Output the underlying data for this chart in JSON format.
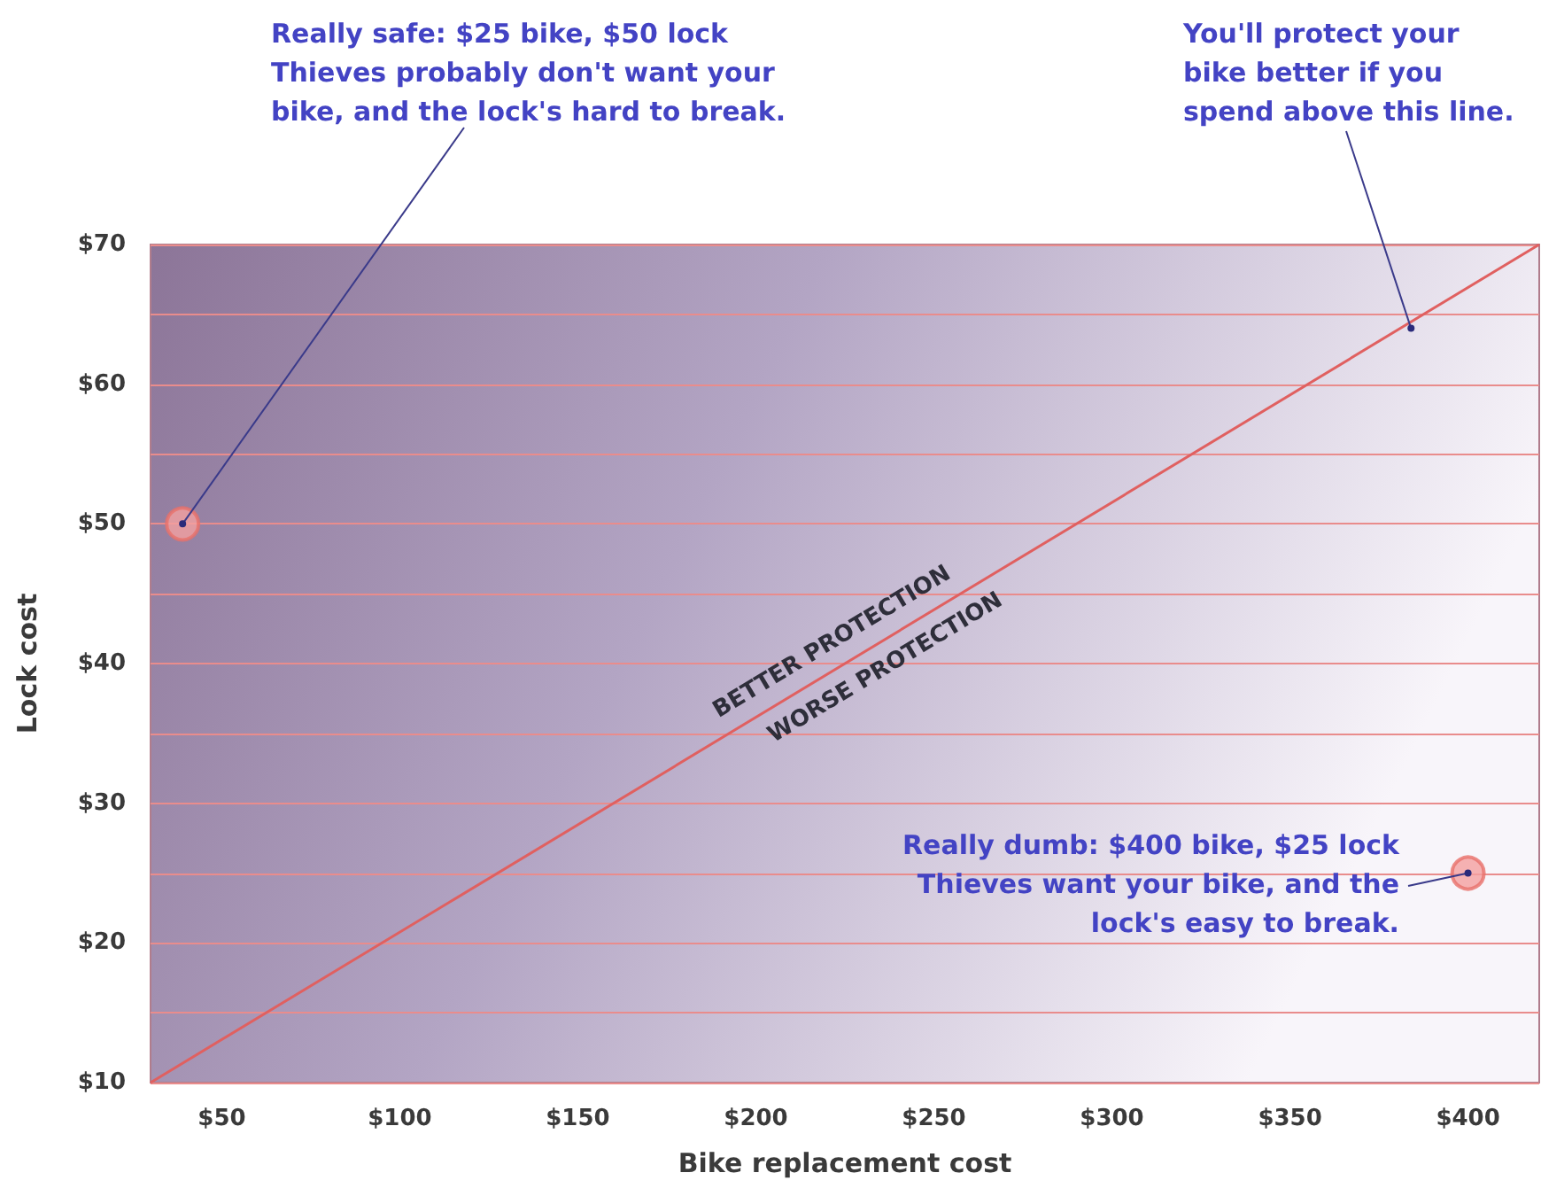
{
  "chart_data": {
    "type": "scatter",
    "xlabel": "Bike replacement cost",
    "ylabel": "Lock cost",
    "xlim": [
      30,
      420
    ],
    "ylim": [
      10,
      70
    ],
    "xticks": [
      {
        "value": 50,
        "label": "$50"
      },
      {
        "value": 100,
        "label": "$100"
      },
      {
        "value": 150,
        "label": "$150"
      },
      {
        "value": 200,
        "label": "$200"
      },
      {
        "value": 250,
        "label": "$250"
      },
      {
        "value": 300,
        "label": "$300"
      },
      {
        "value": 350,
        "label": "$350"
      },
      {
        "value": 400,
        "label": "$400"
      }
    ],
    "yticks": [
      {
        "value": 10,
        "label": "$10"
      },
      {
        "value": 15,
        "label": null
      },
      {
        "value": 20,
        "label": "$20"
      },
      {
        "value": 25,
        "label": null
      },
      {
        "value": 30,
        "label": "$30"
      },
      {
        "value": 35,
        "label": null
      },
      {
        "value": 40,
        "label": "$40"
      },
      {
        "value": 45,
        "label": null
      },
      {
        "value": 50,
        "label": "$50"
      },
      {
        "value": 55,
        "label": null
      },
      {
        "value": 60,
        "label": "$60"
      },
      {
        "value": 65,
        "label": null
      },
      {
        "value": 70,
        "label": "$70"
      }
    ],
    "grid": "y",
    "marker": "circle",
    "series": [
      {
        "type": "line",
        "color": "#e06060",
        "marker": "none",
        "x": [
          30,
          420
        ],
        "values": [
          10,
          70
        ]
      },
      {
        "color": "#f4a0a0",
        "x": [
          39,
          400
        ],
        "values": [
          50,
          25
        ]
      }
    ],
    "annotations": [
      {
        "text": "Really safe: $25 bike, $50 lock\nThieves probably don't want your\nbike, and the lock's hard to break.",
        "x": 39,
        "y": 50
      },
      {
        "text": "You'll protect your\nbike better if you\nspend above this line.",
        "x": 384,
        "y": 64
      },
      {
        "text": "Really dumb: $400 bike, $25 lock\nThieves want your bike, and the\nlock's easy to break.",
        "x": 400,
        "y": 25
      },
      "BETTER PROTECTION",
      "WORSE PROTECTION"
    ]
  }
}
